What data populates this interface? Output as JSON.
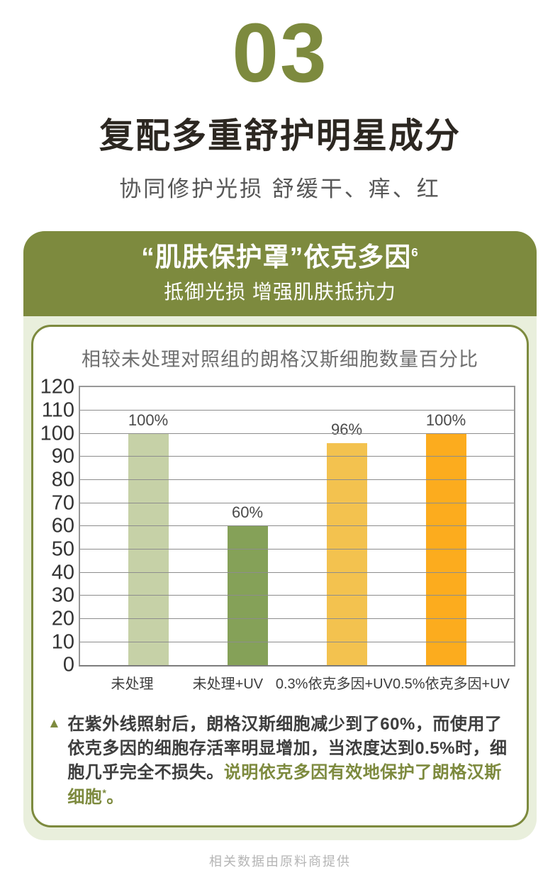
{
  "colors": {
    "accent_olive": "#7d8a3e",
    "card_background": "#e9efdc",
    "bar_untreated": "#c6d1a7",
    "bar_untreated_uv": "#85a158",
    "bar_ectoin_03": "#f3c24f",
    "bar_ectoin_05": "#fcac1e"
  },
  "page": {
    "section_number": "03",
    "title": "复配多重舒护明星成分",
    "subtitle": "协同修护光损  舒缓干、痒、红"
  },
  "feature_card": {
    "header": {
      "title": "“肌肤保护罩”依克多因",
      "title_sup": "6",
      "subtitle": "抵御光损 增强肌肤抵抗力"
    },
    "note": {
      "marker": "▲",
      "lead": "在紫外线照射后，朗格汉斯细胞减少到了60%，而使用了依克多因的细胞存活率明显增加，当浓度达到0.5%时，细胞几乎完全不损失。",
      "highlight": "说明依克多因有效地保护了朗格汉斯细胞",
      "highlight_sup": "*",
      "highlight_end": "。"
    }
  },
  "footer": "相关数据由原料商提供",
  "chart_data": {
    "type": "bar",
    "title": "相较未处理对照组的朗格汉斯细胞数量百分比",
    "categories": [
      "未处理",
      "未处理+UV",
      "0.3%依克多因+UV",
      "0.5%依克多因+UV"
    ],
    "values": [
      100,
      60,
      96,
      100
    ],
    "value_labels": [
      "100%",
      "60%",
      "96%",
      "100%"
    ],
    "bar_colors": [
      "#c6d1a7",
      "#85a158",
      "#f3c24f",
      "#fcac1e"
    ],
    "xlabel": "",
    "ylabel": "",
    "ylim": [
      0,
      120
    ],
    "ytick_step": 10,
    "grid": true,
    "legend": false
  }
}
